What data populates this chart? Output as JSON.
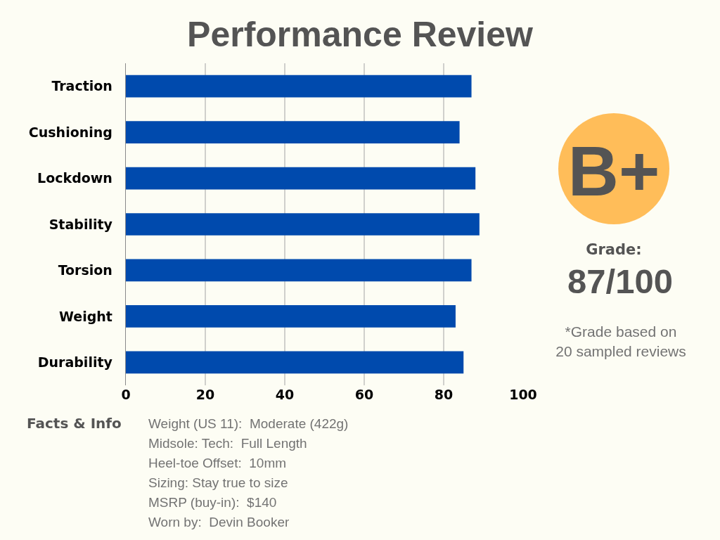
{
  "chart_data": {
    "type": "bar",
    "orientation": "horizontal",
    "title": "Performance Review",
    "categories": [
      "Traction",
      "Cushioning",
      "Lockdown",
      "Stability",
      "Torsion",
      "Weight",
      "Durability"
    ],
    "values": [
      87,
      84,
      88,
      89,
      87,
      83,
      85
    ],
    "color": "#004aad",
    "xlim": [
      0,
      100
    ],
    "xticks": [
      0,
      20,
      40,
      60,
      80,
      100
    ],
    "grid": "x",
    "annotations": [
      "B+",
      "Grade:",
      "87/100",
      "*Grade based on\n20 sampled reviews",
      "Facts & Info",
      "Weight (US 11):  Moderate (422g)",
      "Midsole: Tech:  Full Length",
      "Heel-toe Offset:  10mm",
      "Sizing: Stay true to size",
      "MSRP (buy-in):  $140",
      "Worn by:  Devin Booker"
    ]
  }
}
